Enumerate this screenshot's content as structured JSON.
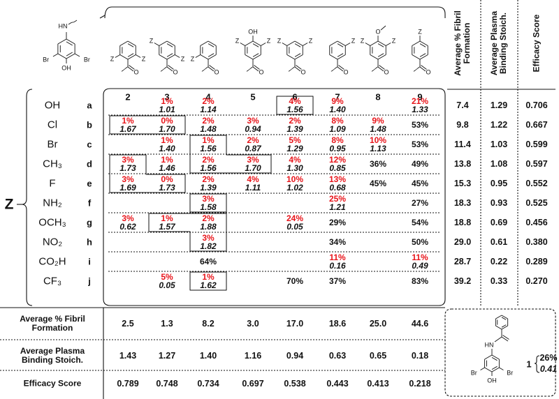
{
  "scaffold": {
    "labels": [
      "HN",
      "Br",
      "Br",
      "OH"
    ]
  },
  "columns": [
    {
      "id": "2",
      "labels": [
        "Z",
        "Z",
        "O"
      ]
    },
    {
      "id": "3",
      "labels": [
        "Z",
        "Z",
        "O"
      ]
    },
    {
      "id": "4",
      "labels": [
        "Z",
        "O"
      ]
    },
    {
      "id": "5",
      "labels": [
        "OH",
        "Z",
        "Z",
        "O"
      ]
    },
    {
      "id": "6",
      "labels": [
        "Z",
        "Z",
        "O"
      ]
    },
    {
      "id": "7",
      "labels": [
        "Z",
        "O"
      ]
    },
    {
      "id": "8",
      "labels": [
        "O",
        "Z",
        "Z",
        "O"
      ]
    },
    {
      "id": "9",
      "labels": [
        "Z",
        "O"
      ]
    }
  ],
  "z_label": "Z",
  "side_headers": [
    "Average % Fibril Formation",
    "Average Plasma Binding Stoich.",
    "Efficacy Score"
  ],
  "rows": [
    {
      "substituent": "OH",
      "id": "a",
      "cells": [
        null,
        {
          "pct": "1%",
          "stoich": "1.01"
        },
        {
          "pct": "2%",
          "stoich": "1.14"
        },
        null,
        {
          "pct": "4%",
          "stoich": "1.56"
        },
        {
          "pct": "9%",
          "stoich": "1.40"
        },
        null,
        {
          "pct": "21%",
          "stoich": "1.33"
        }
      ],
      "side": [
        "7.4",
        "1.29",
        "0.706"
      ]
    },
    {
      "substituent": "Cl",
      "id": "b",
      "cells": [
        {
          "pct": "1%",
          "stoich": "1.67"
        },
        {
          "pct": "0%",
          "stoich": "1.70"
        },
        {
          "pct": "2%",
          "stoich": "1.48"
        },
        {
          "pct": "3%",
          "stoich": "0.94"
        },
        {
          "pct": "2%",
          "stoich": "1.39"
        },
        {
          "pct": "8%",
          "stoich": "1.09"
        },
        {
          "pct": "9%",
          "stoich": "1.48"
        },
        {
          "pct": "53%"
        }
      ],
      "side": [
        "9.8",
        "1.22",
        "0.667"
      ]
    },
    {
      "substituent": "Br",
      "id": "c",
      "cells": [
        null,
        {
          "pct": "1%",
          "stoich": "1.40"
        },
        {
          "pct": "1%",
          "stoich": "1.56"
        },
        {
          "pct": "2%",
          "stoich": "0.87"
        },
        {
          "pct": "5%",
          "stoich": "1.29"
        },
        {
          "pct": "8%",
          "stoich": "0.95"
        },
        {
          "pct": "10%",
          "stoich": "1.13"
        },
        {
          "pct": "53%"
        }
      ],
      "side": [
        "11.4",
        "1.03",
        "0.599"
      ]
    },
    {
      "substituent": "CH₃",
      "id": "d",
      "cells": [
        {
          "pct": "3%",
          "stoich": "1.73"
        },
        {
          "pct": "1%",
          "stoich": "1.46"
        },
        {
          "pct": "2%",
          "stoich": "1.56"
        },
        {
          "pct": "3%",
          "stoich": "1.70"
        },
        {
          "pct": "4%",
          "stoich": "1.30"
        },
        {
          "pct": "12%",
          "stoich": "0.85"
        },
        {
          "pct": "36%"
        },
        {
          "pct": "49%"
        }
      ],
      "side": [
        "13.8",
        "1.08",
        "0.597"
      ]
    },
    {
      "substituent": "F",
      "id": "e",
      "cells": [
        {
          "pct": "3%",
          "stoich": "1.69"
        },
        {
          "pct": "0%",
          "stoich": "1.73"
        },
        {
          "pct": "2%",
          "stoich": "1.39"
        },
        {
          "pct": "4%",
          "stoich": "1.11"
        },
        {
          "pct": "10%",
          "stoich": "1.02"
        },
        {
          "pct": "13%",
          "stoich": "0.68"
        },
        {
          "pct": "45%"
        },
        {
          "pct": "45%"
        }
      ],
      "side": [
        "15.3",
        "0.95",
        "0.552"
      ]
    },
    {
      "substituent": "NH₂",
      "id": "f",
      "cells": [
        null,
        null,
        {
          "pct": "3%",
          "stoich": "1.58"
        },
        null,
        null,
        {
          "pct": "25%",
          "stoich": "1.21"
        },
        null,
        {
          "pct": "27%"
        }
      ],
      "side": [
        "18.3",
        "0.93",
        "0.525"
      ]
    },
    {
      "substituent": "OCH₃",
      "id": "g",
      "cells": [
        {
          "pct": "3%",
          "stoich": "0.62"
        },
        {
          "pct": "1%",
          "stoich": "1.57"
        },
        {
          "pct": "2%",
          "stoich": "1.88"
        },
        null,
        {
          "pct": "24%",
          "stoich": "0.05"
        },
        {
          "pct": "29%"
        },
        null,
        {
          "pct": "54%"
        }
      ],
      "side": [
        "18.8",
        "0.69",
        "0.456"
      ]
    },
    {
      "substituent": "NO₂",
      "id": "h",
      "cells": [
        null,
        null,
        {
          "pct": "3%",
          "stoich": "1.82"
        },
        null,
        null,
        {
          "pct": "34%"
        },
        null,
        {
          "pct": "50%"
        }
      ],
      "side": [
        "29.0",
        "0.61",
        "0.380"
      ]
    },
    {
      "substituent": "CO₂H",
      "id": "i",
      "cells": [
        null,
        null,
        {
          "pct": "64%"
        },
        null,
        null,
        {
          "pct": "11%",
          "stoich": "0.16"
        },
        null,
        {
          "pct": "11%",
          "stoich": "0.49"
        }
      ],
      "side": [
        "28.7",
        "0.22",
        "0.289"
      ]
    },
    {
      "substituent": "CF₃",
      "id": "j",
      "cells": [
        null,
        {
          "pct": "5%",
          "stoich": "0.05"
        },
        {
          "pct": "1%",
          "stoich": "1.62"
        },
        null,
        {
          "pct": "70%"
        },
        {
          "pct": "37%"
        },
        null,
        {
          "pct": "83%"
        }
      ],
      "side": [
        "39.2",
        "0.33",
        "0.270"
      ]
    }
  ],
  "column_summary": [
    {
      "label": "Average % Fibril Formation",
      "values": [
        "2.5",
        "1.3",
        "8.2",
        "3.0",
        "17.0",
        "18.6",
        "25.0",
        "44.6"
      ]
    },
    {
      "label": "Average Plasma Binding Stoich.",
      "values": [
        "1.43",
        "1.27",
        "1.40",
        "1.16",
        "0.94",
        "0.63",
        "0.65",
        "0.18"
      ]
    },
    {
      "label": "Efficacy Score",
      "values": [
        "0.789",
        "0.748",
        "0.734",
        "0.697",
        "0.538",
        "0.443",
        "0.413",
        "0.218"
      ]
    }
  ],
  "compound_1": {
    "labels": [
      "HN",
      "Br",
      "Br",
      "OH"
    ],
    "id": "1",
    "pct": "26%",
    "stoich": "0.41"
  }
}
